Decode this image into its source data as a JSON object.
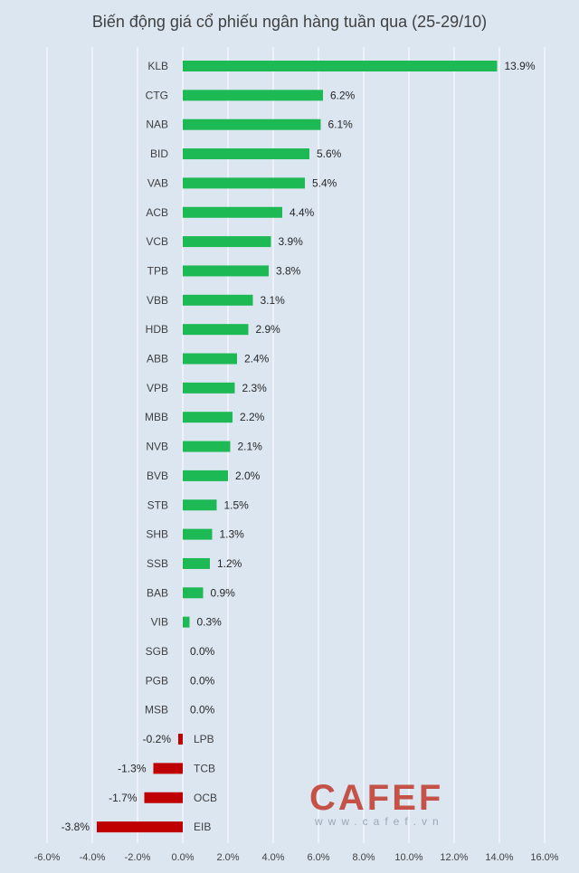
{
  "chart_data": {
    "type": "bar",
    "orientation": "horizontal",
    "title": "Biến động giá cổ phiếu ngân hàng tuần qua (25-29/10)",
    "categories": [
      "KLB",
      "CTG",
      "NAB",
      "BID",
      "VAB",
      "ACB",
      "VCB",
      "TPB",
      "VBB",
      "HDB",
      "ABB",
      "VPB",
      "MBB",
      "NVB",
      "BVB",
      "STB",
      "SHB",
      "SSB",
      "BAB",
      "VIB",
      "SGB",
      "PGB",
      "MSB",
      "LPB",
      "TCB",
      "OCB",
      "EIB"
    ],
    "values": [
      13.9,
      6.2,
      6.1,
      5.6,
      5.4,
      4.4,
      3.9,
      3.8,
      3.1,
      2.9,
      2.4,
      2.3,
      2.2,
      2.1,
      2.0,
      1.5,
      1.3,
      1.2,
      0.9,
      0.3,
      0.0,
      0.0,
      0.0,
      -0.2,
      -1.3,
      -1.7,
      -3.8
    ],
    "value_labels": [
      "13.9%",
      "6.2%",
      "6.1%",
      "5.6%",
      "5.4%",
      "4.4%",
      "3.9%",
      "3.8%",
      "3.1%",
      "2.9%",
      "2.4%",
      "2.3%",
      "2.2%",
      "2.1%",
      "2.0%",
      "1.5%",
      "1.3%",
      "1.2%",
      "0.9%",
      "0.3%",
      "0.0%",
      "0.0%",
      "0.0%",
      "-0.2%",
      "-1.3%",
      "-1.7%",
      "-3.8%"
    ],
    "xlim": [
      -6,
      16
    ],
    "x_ticks": [
      -6,
      -4,
      -2,
      0,
      2,
      4,
      6,
      8,
      10,
      12,
      14,
      16
    ],
    "x_tick_labels": [
      "-6.0%",
      "-4.0%",
      "-2.0%",
      "0.0%",
      "2.0%",
      "4.0%",
      "6.0%",
      "8.0%",
      "10.0%",
      "12.0%",
      "14.0%",
      "16.0%"
    ],
    "grid": true,
    "colors": {
      "positive": "#1db954",
      "negative": "#c00000",
      "grid": "#ffffff",
      "background": "#dce6f1"
    }
  },
  "watermark": {
    "main": "CAFEF",
    "sub": "www.cafef.vn"
  }
}
